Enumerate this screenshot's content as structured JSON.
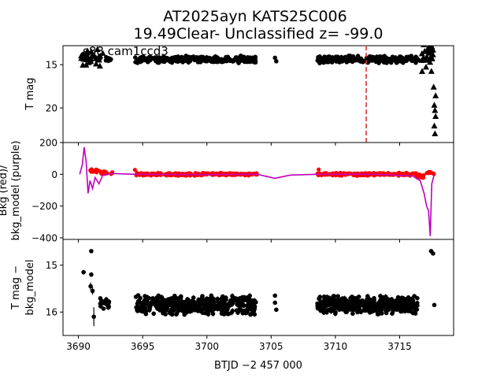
{
  "title": {
    "line1": "AT2025ayn  KATS25C006",
    "line2": "19.49Clear- Unclassified z= -99.0"
  },
  "chart_data": [
    {
      "type": "scatter",
      "panel": "top",
      "ylabel": "T mag",
      "annotation": "s88 cam1ccd3",
      "y_inverted": true,
      "ylim": [
        24.0,
        12.8
      ],
      "yticks": [
        15,
        20
      ],
      "ytick_labels": [
        "15",
        "20"
      ],
      "vline": {
        "x": 3712.4,
        "color": "#d62728",
        "style": "dashed"
      },
      "series": [
        {
          "marker": "triangle",
          "color": "#000000",
          "segments": [
            {
              "x0": 3690.2,
              "x1": 3691.7,
              "y": 14.2,
              "spread": 1.1,
              "n": 40
            },
            {
              "x0": 3716.7,
              "x1": 3717.6,
              "y": 14.0,
              "spread": 2.6,
              "n": 30
            }
          ],
          "points": [
            {
              "x": 3691.0,
              "y": 13.5
            },
            {
              "x": 3691.9,
              "y": 13.7
            },
            {
              "x": 3717.4,
              "y": 13.0
            },
            {
              "x": 3717.5,
              "y": 12.9
            },
            {
              "x": 3717.6,
              "y": 13.3
            },
            {
              "x": 3717.65,
              "y": 17.6
            },
            {
              "x": 3717.8,
              "y": 18.6
            },
            {
              "x": 3717.7,
              "y": 19.7
            },
            {
              "x": 3717.75,
              "y": 20.3
            },
            {
              "x": 3717.8,
              "y": 21.0
            },
            {
              "x": 3717.7,
              "y": 22.1
            },
            {
              "x": 3717.75,
              "y": 23.0
            }
          ]
        },
        {
          "marker": "circle",
          "color": "#000000",
          "segments": [
            {
              "x0": 3692.1,
              "x1": 3692.6,
              "y": 14.35,
              "spread": 0.3,
              "n": 8
            },
            {
              "x0": 3694.4,
              "x1": 3703.9,
              "y": 14.4,
              "spread": 0.45,
              "n": 260
            },
            {
              "x0": 3708.6,
              "x1": 3716.5,
              "y": 14.4,
              "spread": 0.45,
              "n": 240
            }
          ],
          "points": [
            {
              "x": 3705.3,
              "y": 14.2
            },
            {
              "x": 3705.4,
              "y": 14.6
            }
          ]
        }
      ]
    },
    {
      "type": "line",
      "panel": "middle",
      "ylabel_lines": [
        "Bkg (red)/",
        "bkg_model (purple)"
      ],
      "ylim": [
        -410,
        200
      ],
      "yticks": [
        -400,
        -200,
        0,
        200
      ],
      "ytick_labels": [
        "−400",
        "−200",
        "0",
        "200"
      ],
      "series": [
        {
          "kind": "points",
          "color": "#ff0000",
          "segments": [
            {
              "x0": 3690.9,
              "x1": 3691.7,
              "y": 22,
              "spread": 12,
              "n": 14
            },
            {
              "x0": 3691.7,
              "x1": 3692.7,
              "y": 8,
              "spread": 12,
              "n": 14
            },
            {
              "x0": 3694.4,
              "x1": 3703.9,
              "y": 0,
              "spread": 10,
              "n": 220
            },
            {
              "x0": 3708.6,
              "x1": 3716.3,
              "y": 0,
              "spread": 10,
              "n": 200
            },
            {
              "x0": 3716.3,
              "x1": 3716.9,
              "y": -10,
              "spread": 14,
              "n": 16
            },
            {
              "x0": 3717.1,
              "x1": 3717.7,
              "y": 10,
              "spread": 10,
              "n": 10
            }
          ],
          "points": [
            {
              "x": 3694.4,
              "y": 28
            },
            {
              "x": 3708.7,
              "y": 30
            }
          ]
        },
        {
          "kind": "line",
          "color": "#bf00bf",
          "points": [
            {
              "x": 3690.1,
              "y": 0
            },
            {
              "x": 3690.3,
              "y": 60
            },
            {
              "x": 3690.45,
              "y": 170
            },
            {
              "x": 3690.6,
              "y": 80
            },
            {
              "x": 3690.75,
              "y": -120
            },
            {
              "x": 3690.9,
              "y": -40
            },
            {
              "x": 3691.1,
              "y": -90
            },
            {
              "x": 3691.3,
              "y": -20
            },
            {
              "x": 3691.6,
              "y": -60
            },
            {
              "x": 3691.9,
              "y": -5
            },
            {
              "x": 3692.6,
              "y": 5
            },
            {
              "x": 3694.4,
              "y": 0
            },
            {
              "x": 3699.0,
              "y": -2
            },
            {
              "x": 3703.9,
              "y": 0
            },
            {
              "x": 3705.3,
              "y": -25
            },
            {
              "x": 3706.5,
              "y": -5
            },
            {
              "x": 3708.6,
              "y": 0
            },
            {
              "x": 3713.0,
              "y": 0
            },
            {
              "x": 3716.0,
              "y": -10
            },
            {
              "x": 3716.6,
              "y": -40
            },
            {
              "x": 3716.9,
              "y": -120
            },
            {
              "x": 3717.1,
              "y": -200
            },
            {
              "x": 3717.25,
              "y": -230
            },
            {
              "x": 3717.38,
              "y": -390
            },
            {
              "x": 3717.5,
              "y": -60
            },
            {
              "x": 3717.7,
              "y": 0
            }
          ]
        }
      ]
    },
    {
      "type": "scatter",
      "panel": "bottom",
      "ylabel_lines": [
        "T mag −",
        "bkg_model"
      ],
      "y_inverted": true,
      "ylim": [
        16.5,
        14.45
      ],
      "yticks": [
        15,
        16
      ],
      "ytick_labels": [
        "15",
        "16"
      ],
      "series": [
        {
          "marker": "circle-errorbar",
          "color": "#000000",
          "segments": [
            {
              "x0": 3691.7,
              "x1": 3692.4,
              "y": 15.8,
              "spread": 0.15,
              "n": 18
            },
            {
              "x0": 3694.4,
              "x1": 3703.9,
              "y": 15.85,
              "spread": 0.22,
              "n": 420
            },
            {
              "x0": 3708.6,
              "x1": 3716.4,
              "y": 15.85,
              "spread": 0.22,
              "n": 400
            }
          ],
          "points": [
            {
              "x": 3691.0,
              "y": 14.7,
              "err": 0.02
            },
            {
              "x": 3690.4,
              "y": 15.15,
              "err": 0.05
            },
            {
              "x": 3691.0,
              "y": 15.2,
              "err": 0.05
            },
            {
              "x": 3690.95,
              "y": 15.45,
              "err": 0.08
            },
            {
              "x": 3691.1,
              "y": 15.55,
              "err": 0.08
            },
            {
              "x": 3691.2,
              "y": 16.1,
              "err": 0.2
            },
            {
              "x": 3705.3,
              "y": 15.65,
              "err": 0.03
            },
            {
              "x": 3705.3,
              "y": 15.8,
              "err": 0.03
            },
            {
              "x": 3705.4,
              "y": 15.95,
              "err": 0.03
            },
            {
              "x": 3717.45,
              "y": 14.7,
              "err": 0.02
            },
            {
              "x": 3717.6,
              "y": 14.75,
              "err": 0.02
            },
            {
              "x": 3717.7,
              "y": 15.85,
              "err": 0.03
            }
          ]
        }
      ]
    }
  ],
  "x_axis": {
    "xlabel": "BTJD −2 457 000",
    "xlim": [
      3688.8,
      3719.2
    ],
    "xticks": [
      3690,
      3695,
      3700,
      3705,
      3710,
      3715
    ],
    "xtick_labels": [
      "3690",
      "3695",
      "3700",
      "3705",
      "3710",
      "3715"
    ]
  }
}
